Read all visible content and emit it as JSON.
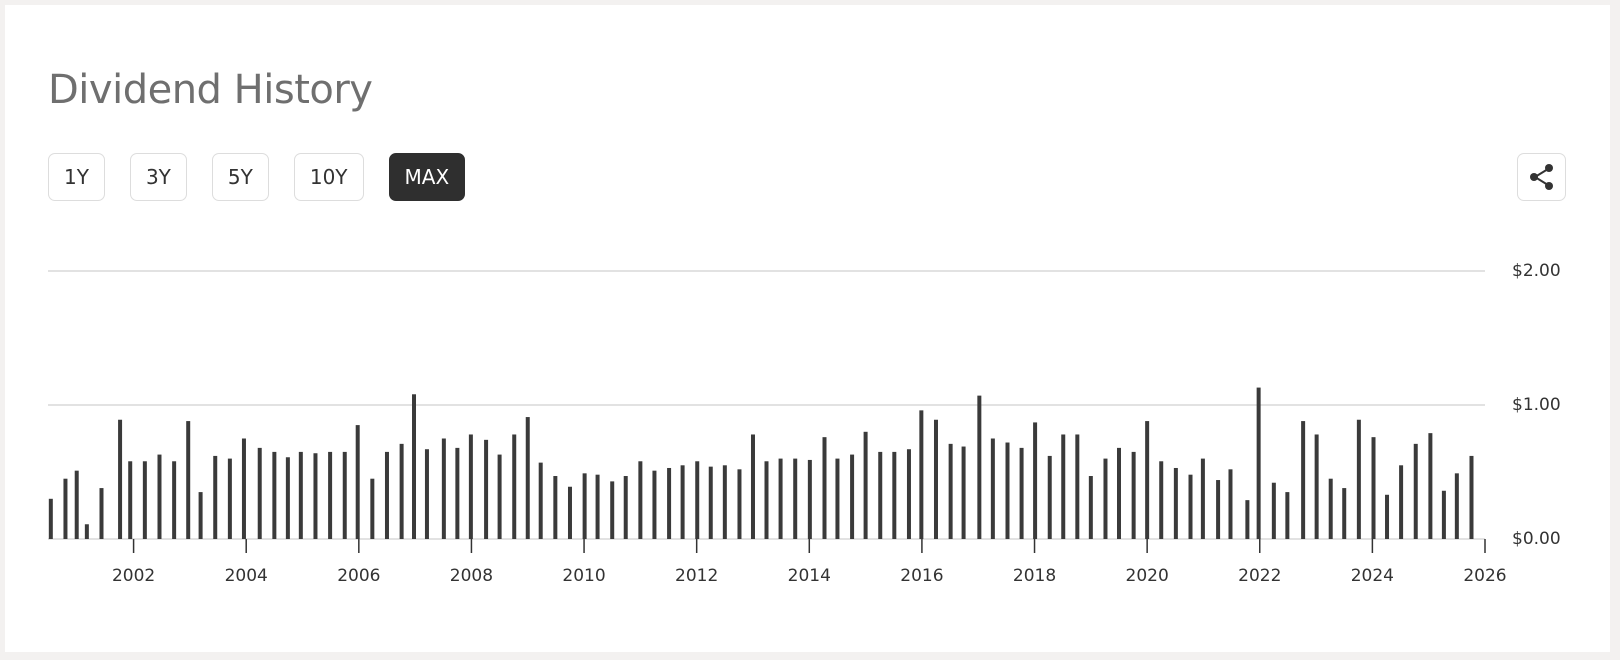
{
  "header": {
    "title": "Dividend History"
  },
  "range_buttons": [
    "1Y",
    "3Y",
    "5Y",
    "10Y",
    "MAX"
  ],
  "selected_range": "MAX",
  "chart_data": {
    "type": "bar",
    "color": "#3a3a3a",
    "grid": true,
    "x": [
      2000.53,
      2000.79,
      2000.99,
      2001.17,
      2001.43,
      2001.76,
      2001.94,
      2002.2,
      2002.46,
      2002.72,
      2002.97,
      2003.19,
      2003.45,
      2003.71,
      2003.96,
      2004.24,
      2004.5,
      2004.74,
      2004.97,
      2005.23,
      2005.49,
      2005.75,
      2005.98,
      2006.24,
      2006.5,
      2006.76,
      2006.98,
      2007.21,
      2007.51,
      2007.75,
      2007.99,
      2008.26,
      2008.5,
      2008.76,
      2009.0,
      2009.23,
      2009.49,
      2009.75,
      2010.01,
      2010.24,
      2010.5,
      2010.74,
      2011.0,
      2011.25,
      2011.51,
      2011.75,
      2012.01,
      2012.25,
      2012.5,
      2012.76,
      2013.0,
      2013.24,
      2013.49,
      2013.75,
      2014.01,
      2014.27,
      2014.5,
      2014.76,
      2015.0,
      2015.26,
      2015.51,
      2015.77,
      2015.99,
      2016.25,
      2016.51,
      2016.74,
      2017.02,
      2017.26,
      2017.52,
      2017.77,
      2018.01,
      2018.27,
      2018.51,
      2018.76,
      2019.0,
      2019.26,
      2019.5,
      2019.76,
      2020.0,
      2020.25,
      2020.51,
      2020.77,
      2020.99,
      2021.26,
      2021.48,
      2021.78,
      2021.98,
      2022.25,
      2022.49,
      2022.77,
      2023.01,
      2023.26,
      2023.5,
      2023.76,
      2024.02,
      2024.26,
      2024.51,
      2024.77,
      2025.03,
      2025.27,
      2025.5,
      2025.76
    ],
    "values": [
      0.3,
      0.45,
      0.51,
      0.11,
      0.38,
      0.89,
      0.58,
      0.58,
      0.63,
      0.58,
      0.88,
      0.35,
      0.62,
      0.6,
      0.75,
      0.68,
      0.65,
      0.61,
      0.65,
      0.64,
      0.65,
      0.65,
      0.85,
      0.45,
      0.65,
      0.71,
      1.08,
      0.67,
      0.75,
      0.68,
      0.78,
      0.74,
      0.63,
      0.78,
      0.91,
      0.57,
      0.47,
      0.39,
      0.49,
      0.48,
      0.43,
      0.47,
      0.58,
      0.51,
      0.53,
      0.55,
      0.58,
      0.54,
      0.55,
      0.52,
      0.78,
      0.58,
      0.6,
      0.6,
      0.59,
      0.76,
      0.6,
      0.63,
      0.8,
      0.65,
      0.65,
      0.67,
      0.96,
      0.89,
      0.71,
      0.69,
      1.07,
      0.75,
      0.72,
      0.68,
      0.87,
      0.62,
      0.78,
      0.78,
      0.47,
      0.6,
      0.68,
      0.65,
      0.88,
      0.58,
      0.53,
      0.48,
      0.6,
      0.44,
      0.52,
      0.29,
      1.13,
      0.42,
      0.35,
      0.88,
      0.78,
      0.45,
      0.38,
      0.89,
      0.76,
      0.33,
      0.55,
      0.71,
      0.79,
      0.36,
      0.49,
      0.62
    ],
    "xlim": [
      2000.48,
      2026
    ],
    "xticks": [
      2002,
      2004,
      2006,
      2008,
      2010,
      2012,
      2014,
      2016,
      2018,
      2020,
      2022,
      2024,
      2026
    ],
    "ylim": [
      0,
      2
    ],
    "yticks": [
      {
        "value": 0,
        "label": "$0.00"
      },
      {
        "value": 1,
        "label": "$1.00"
      },
      {
        "value": 2,
        "label": "$2.00"
      }
    ]
  }
}
